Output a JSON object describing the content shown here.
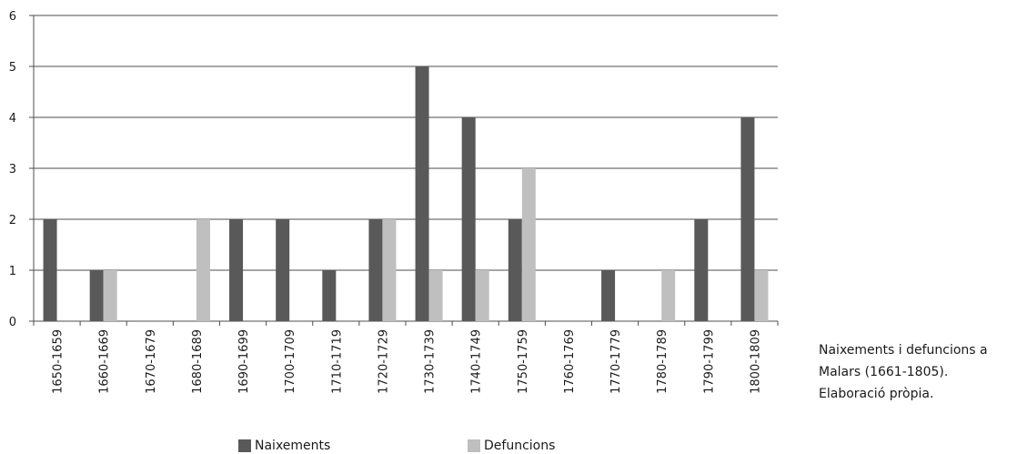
{
  "chart_data": {
    "type": "bar",
    "title": "",
    "xlabel": "",
    "ylabel": "",
    "ylim": [
      0,
      6
    ],
    "yticks": [
      0,
      1,
      2,
      3,
      4,
      5,
      6
    ],
    "grid": true,
    "legend_position": "bottom",
    "categories": [
      "1650-1659",
      "1660-1669",
      "1670-1679",
      "1680-1689",
      "1690-1699",
      "1700-1709",
      "1710-1719",
      "1720-1729",
      "1730-1739",
      "1740-1749",
      "1750-1759",
      "1760-1769",
      "1770-1779",
      "1780-1789",
      "1790-1799",
      "1800-1809"
    ],
    "series": [
      {
        "name": "Naixements",
        "color": "#595959",
        "values": [
          2,
          1,
          0,
          0,
          2,
          2,
          1,
          2,
          5,
          4,
          2,
          0,
          1,
          0,
          2,
          4
        ]
      },
      {
        "name": "Defuncions",
        "color": "#bfbfbf",
        "values": [
          0,
          1,
          0,
          2,
          0,
          0,
          0,
          2,
          1,
          1,
          3,
          0,
          0,
          1,
          0,
          1
        ]
      }
    ]
  },
  "caption": {
    "lines": [
      "Naixements i defuncions a",
      "Malars (1661-1805).",
      "Elaboració pròpia."
    ]
  }
}
